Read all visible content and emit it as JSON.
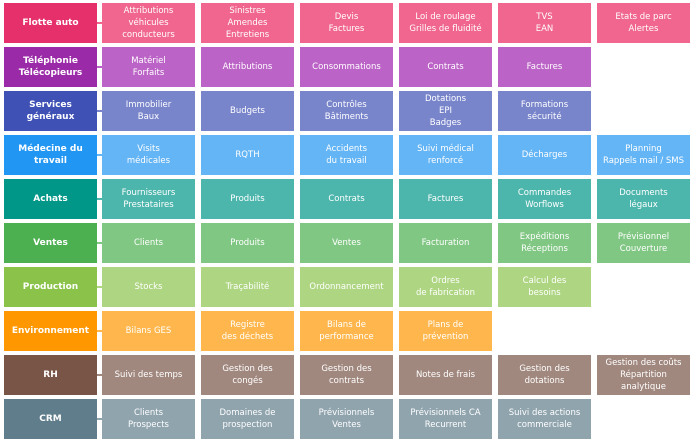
{
  "rows": [
    {
      "title": "Flotte auto",
      "dark": "#e5306c",
      "light": "#f0668f",
      "items": [
        "Attributions\nvéhicules\nconducteurs",
        "Sinistres\nAmendes\nEntretiens",
        "Devis\nFactures",
        "Loi de roulage\nGrilles de fluidité",
        "TVS\nEAN",
        "Etats de parc\nAlertes"
      ]
    },
    {
      "title": "Téléphonie\nTélécopieurs",
      "dark": "#9b2aa8",
      "light": "#bb63c6",
      "items": [
        "Matériel\nForfaits",
        "Attributions",
        "Consommations",
        "Contrats",
        "Factures"
      ]
    },
    {
      "title": "Services\ngénéraux",
      "dark": "#3f51b5",
      "light": "#7985cb",
      "items": [
        "Immobilier\nBaux",
        "Budgets",
        "Contrôles\nBâtiments",
        "Dotations\nEPI\nBadges",
        "Formations\nsécurité"
      ]
    },
    {
      "title": "Médecine du\ntravail",
      "dark": "#2196f3",
      "light": "#64b5f6",
      "items": [
        "Visits\nmédicales",
        "RQTH",
        "Accidents\ndu travail",
        "Suivi médical\nrenforcé",
        "Décharges",
        "Planning\nRappels mail / SMS"
      ]
    },
    {
      "title": "Achats",
      "dark": "#009688",
      "light": "#4db6ac",
      "items": [
        "Fournisseurs\nPrestataires",
        "Produits",
        "Contrats",
        "Factures",
        "Commandes\nWorflows",
        "Documents\nlégaux"
      ]
    },
    {
      "title": "Ventes",
      "dark": "#4caf50",
      "light": "#81c784",
      "items": [
        "Clients",
        "Produits",
        "Ventes",
        "Facturation",
        "Expéditions\nRéceptions",
        "Prévisionnel\nCouverture"
      ]
    },
    {
      "title": "Production",
      "dark": "#8bc34a",
      "light": "#aed581",
      "items": [
        "Stocks",
        "Traçabilité",
        "Ordonnancement",
        "Ordres\nde fabrication",
        "Calcul des\nbesoins"
      ]
    },
    {
      "title": "Environnement",
      "dark": "#ff9800",
      "light": "#ffb74d",
      "items": [
        "Bilans GES",
        "Registre\ndes déchets",
        "Bilans de\nperformance",
        "Plans de\nprévention"
      ]
    },
    {
      "title": "RH",
      "dark": "#795548",
      "light": "#a1887f",
      "items": [
        "Suivi des temps",
        "Gestion des\ncongés",
        "Gestion des\ncontrats",
        "Notes de frais",
        "Gestion des\ndotations",
        "Gestion des coûts\nRépartition\nanalytique"
      ]
    },
    {
      "title": "CRM",
      "dark": "#607d8b",
      "light": "#90a4ae",
      "items": [
        "Clients\nProspects",
        "Domaines de\nprospection",
        "Prévisionnels\nVentes",
        "Prévisionnels CA\nRecurrent",
        "Suivi des actions\ncommerciale"
      ]
    }
  ]
}
